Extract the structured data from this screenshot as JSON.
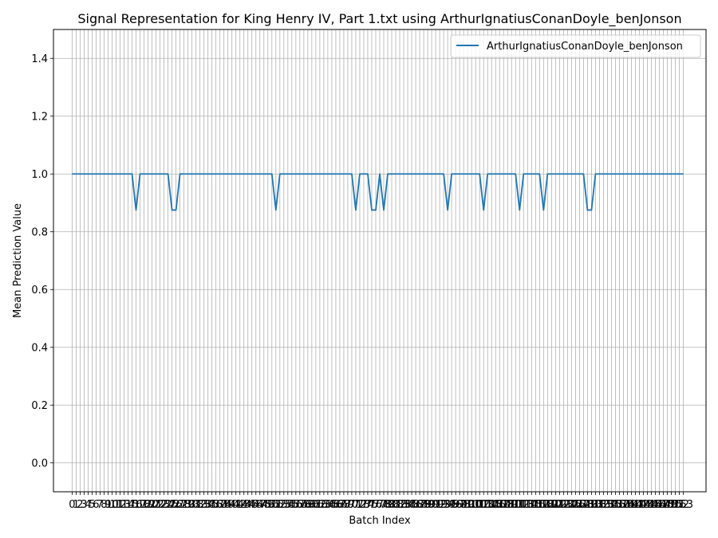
{
  "chart_data": {
    "type": "line",
    "title": "Signal Representation for King Henry IV, Part 1.txt using ArthurIgnatiusConanDoyle_benJonson",
    "xlabel": "Batch Index",
    "ylabel": "Mean Prediction Value",
    "ylim": [
      -0.1,
      1.5
    ],
    "yticks": [
      0.0,
      0.2,
      0.4,
      0.6,
      0.8,
      1.0,
      1.2,
      1.4
    ],
    "ytick_labels": [
      "0.0",
      "0.2",
      "0.4",
      "0.6",
      "0.8",
      "1.0",
      "1.2",
      "1.4"
    ],
    "xticks": [
      0,
      1,
      2,
      3,
      4,
      5,
      6,
      7,
      8,
      9,
      10,
      11,
      12,
      13,
      14,
      15,
      16,
      17,
      18,
      19,
      20,
      21,
      22,
      23,
      24,
      25,
      26,
      27,
      28,
      29,
      30,
      31,
      32,
      33,
      34,
      35,
      36,
      37,
      38,
      39,
      40,
      41,
      42,
      43,
      44,
      45,
      46,
      47,
      48,
      49,
      50,
      51,
      52,
      53,
      54,
      55,
      56,
      57,
      58,
      59,
      60,
      61,
      62,
      63,
      64,
      65,
      66,
      67,
      68,
      69,
      70,
      71,
      72,
      73,
      74,
      75,
      76,
      77,
      78,
      79,
      80,
      81,
      82,
      83,
      84,
      85,
      86,
      87,
      88,
      89,
      90,
      91,
      92,
      93,
      94,
      95,
      96,
      97,
      98,
      99,
      100,
      101,
      102,
      103,
      104,
      105,
      106,
      107,
      108,
      109,
      110,
      111,
      112,
      113,
      114,
      115,
      116,
      117,
      118,
      119,
      120,
      121,
      122,
      123,
      124,
      125,
      126,
      127,
      128,
      129,
      130,
      131,
      132,
      133,
      134,
      135,
      136,
      137,
      138,
      139,
      140,
      141,
      142,
      143,
      144,
      145,
      146,
      147,
      148,
      149,
      150,
      151,
      152,
      153
    ],
    "xtick_labels": [
      "0",
      "1",
      "2",
      "3",
      "4",
      "5",
      "6",
      "7",
      "8",
      "9",
      "10",
      "11",
      "12",
      "13",
      "14",
      "15",
      "16",
      "17",
      "18",
      "19",
      "20",
      "21",
      "22",
      "23",
      "24",
      "25",
      "26",
      "27",
      "28",
      "29",
      "30",
      "31",
      "32",
      "33",
      "34",
      "35",
      "36",
      "37",
      "38",
      "39",
      "40",
      "41",
      "42",
      "43",
      "44",
      "45",
      "46",
      "47",
      "48",
      "49",
      "50",
      "51",
      "52",
      "53",
      "54",
      "55",
      "56",
      "57",
      "58",
      "59",
      "60",
      "61",
      "62",
      "63",
      "64",
      "65",
      "66",
      "67",
      "68",
      "69",
      "70",
      "71",
      "72",
      "73",
      "74",
      "75",
      "76",
      "77",
      "78",
      "79",
      "80",
      "81",
      "82",
      "83",
      "84",
      "85",
      "86",
      "87",
      "88",
      "89",
      "90",
      "91",
      "92",
      "93",
      "94",
      "95",
      "96",
      "97",
      "98",
      "99",
      "100",
      "101",
      "102",
      "103",
      "104",
      "105",
      "106",
      "107",
      "108",
      "109",
      "110",
      "111",
      "112",
      "113",
      "114",
      "115",
      "116",
      "117",
      "118",
      "119",
      "120",
      "121",
      "122",
      "123",
      "124",
      "125",
      "126",
      "127",
      "128",
      "129",
      "130",
      "131",
      "132",
      "133",
      "134",
      "135",
      "136",
      "137",
      "138",
      "139",
      "140",
      "141",
      "142",
      "143",
      "144",
      "145",
      "146",
      "147",
      "148",
      "149",
      "150",
      "151",
      "152",
      "153"
    ],
    "grid": true,
    "legend_position": "upper right",
    "series": [
      {
        "name": "ArthurIgnatiusConanDoyle_benJonson",
        "color": "#1f77b4",
        "x": [
          0,
          1,
          2,
          3,
          4,
          5,
          6,
          7,
          8,
          9,
          10,
          11,
          12,
          13,
          14,
          15,
          16,
          17,
          18,
          19,
          20,
          21,
          22,
          23,
          24,
          25,
          26,
          27,
          28,
          29,
          30,
          31,
          32,
          33,
          34,
          35,
          36,
          37,
          38,
          39,
          40,
          41,
          42,
          43,
          44,
          45,
          46,
          47,
          48,
          49,
          50,
          51,
          52,
          53,
          54,
          55,
          56,
          57,
          58,
          59,
          60,
          61,
          62,
          63,
          64,
          65,
          66,
          67,
          68,
          69,
          70,
          71,
          72,
          73,
          74,
          75,
          76,
          77,
          78,
          79,
          80,
          81,
          82,
          83,
          84,
          85,
          86,
          87,
          88,
          89,
          90,
          91,
          92,
          93,
          94,
          95,
          96,
          97,
          98,
          99,
          100,
          101,
          102,
          103,
          104,
          105,
          106,
          107,
          108,
          109,
          110,
          111,
          112,
          113,
          114,
          115,
          116,
          117,
          118,
          119,
          120,
          121,
          122,
          123,
          124,
          125,
          126,
          127,
          128,
          129,
          130,
          131,
          132,
          133,
          134,
          135,
          136,
          137,
          138,
          139,
          140,
          141,
          142,
          143,
          144,
          145,
          146,
          147,
          148,
          149,
          150,
          151,
          152,
          153
        ],
        "values": [
          1,
          1,
          1,
          1,
          1,
          1,
          1,
          1,
          1,
          1,
          1,
          1,
          1,
          1,
          1,
          1,
          0.875,
          1,
          1,
          1,
          1,
          1,
          1,
          1,
          1,
          0.875,
          0.875,
          1,
          1,
          1,
          1,
          1,
          1,
          1,
          1,
          1,
          1,
          1,
          1,
          1,
          1,
          1,
          1,
          1,
          1,
          1,
          1,
          1,
          1,
          1,
          1,
          0.875,
          1,
          1,
          1,
          1,
          1,
          1,
          1,
          1,
          1,
          1,
          1,
          1,
          1,
          1,
          1,
          1,
          1,
          1,
          1,
          0.875,
          1,
          1,
          1,
          0.875,
          0.875,
          1,
          0.875,
          1,
          1,
          1,
          1,
          1,
          1,
          1,
          1,
          1,
          1,
          1,
          1,
          1,
          1,
          1,
          0.875,
          1,
          1,
          1,
          1,
          1,
          1,
          1,
          1,
          0.875,
          1,
          1,
          1,
          1,
          1,
          1,
          1,
          1,
          0.875,
          1,
          1,
          1,
          1,
          1,
          0.875,
          1,
          1,
          1,
          1,
          1,
          1,
          1,
          1,
          1,
          1,
          0.875,
          0.875,
          1,
          1,
          1,
          1,
          1,
          1,
          1,
          1,
          1,
          1,
          1,
          1,
          1,
          1,
          1,
          1,
          1,
          1,
          1,
          1,
          1,
          1,
          1
        ]
      }
    ]
  }
}
